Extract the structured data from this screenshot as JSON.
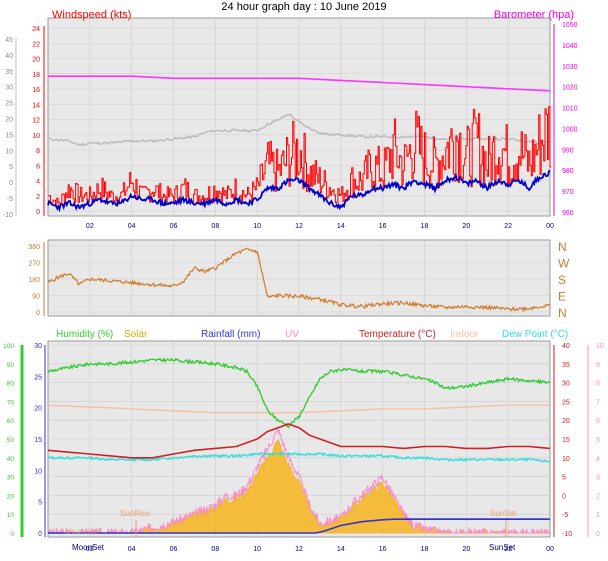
{
  "page_title": "24 hour graph day : 10 June 2019",
  "colors": {
    "windspeed": "#ff0000",
    "wind_avg": "#0000cc",
    "barometer": "#ff33ff",
    "gust_band": "#b8b8b8",
    "direction": "#d07a28",
    "humidity": "#33cc33",
    "solar": "#f7b82a",
    "rainfall": "#3333cc",
    "uv": "#ff88cc",
    "temperature": "#cc2222",
    "indoor": "#f5c0a0",
    "dewpoint": "#33dddd",
    "plot_bg": "#e8e8e8",
    "label_magenta": "#ee00ee"
  },
  "chart_data": [
    {
      "id": "wind-baro",
      "type": "line",
      "title": "24 hour graph day : 10 June 2019",
      "left_axis_label": "Windspeed (kts)",
      "right_axis_label": "Barometer (hpa)",
      "x_ticks": [
        "02",
        "04",
        "06",
        "08",
        "10",
        "12",
        "14",
        "16",
        "18",
        "20",
        "22",
        "00"
      ],
      "left_outer_ticks": [
        "45",
        "40",
        "35",
        "30",
        "25",
        "20",
        "15",
        "10",
        "5",
        "0",
        "-5",
        "-10"
      ],
      "left_inner_ticks": [
        "24",
        "22",
        "20",
        "18",
        "16",
        "14",
        "12",
        "10",
        "8",
        "6",
        "4",
        "2",
        "0"
      ],
      "right_ticks": [
        "1050",
        "1040",
        "1030",
        "1020",
        "1010",
        "1000",
        "990",
        "980",
        "970",
        "960"
      ],
      "ylim_kts": [
        0,
        25
      ],
      "ylim_hpa": [
        958,
        1050
      ],
      "grid": true,
      "series": [
        {
          "name": "Windspeed (kts)",
          "axis": "kts",
          "x": [
            0,
            0.5,
            1,
            1.5,
            2,
            2.5,
            3,
            3.5,
            4,
            4.5,
            5,
            5.5,
            6,
            6.5,
            7,
            7.5,
            8,
            8.5,
            9,
            9.5,
            10,
            10.5,
            11,
            11.5,
            12,
            12.5,
            13,
            13.5,
            14,
            14.5,
            15,
            15.5,
            16,
            16.5,
            17,
            17.5,
            18,
            18.5,
            19,
            19.5,
            20,
            20.5,
            21,
            21.5,
            22,
            22.5,
            23,
            23.5,
            24
          ],
          "values": [
            2,
            1,
            3,
            2,
            2,
            3,
            2,
            2,
            4,
            2,
            3,
            2,
            2,
            3,
            2,
            2,
            3,
            2,
            3,
            2,
            3,
            6,
            5,
            7,
            8,
            5,
            4,
            3,
            2,
            4,
            4,
            6,
            5,
            8,
            6,
            9,
            7,
            6,
            8,
            10,
            7,
            9,
            6,
            9,
            7,
            8,
            6,
            9,
            11
          ]
        },
        {
          "name": "Wind average",
          "axis": "kts",
          "x": [
            0,
            0.5,
            1,
            1.5,
            2,
            2.5,
            3,
            3.5,
            4,
            4.5,
            5,
            5.5,
            6,
            6.5,
            7,
            7.5,
            8,
            8.5,
            9,
            9.5,
            10,
            10.5,
            11,
            11.5,
            12,
            12.5,
            13,
            13.5,
            14,
            14.5,
            15,
            15.5,
            16,
            16.5,
            17,
            17.5,
            18,
            18.5,
            19,
            19.5,
            20,
            20.5,
            21,
            21.5,
            22,
            22.5,
            23,
            23.5,
            24
          ],
          "values": [
            1,
            0.5,
            1,
            0.5,
            1,
            1.5,
            1,
            1,
            2,
            1.5,
            1.5,
            1,
            1,
            1.5,
            1,
            1,
            1.5,
            1,
            1.5,
            1,
            1.5,
            3,
            3,
            4,
            4,
            3,
            2,
            1,
            0.5,
            2,
            2,
            3,
            3,
            3.5,
            3,
            4,
            3.5,
            3,
            4,
            4.5,
            3.5,
            4,
            3,
            4,
            3.5,
            4,
            3,
            4.5,
            5
          ]
        },
        {
          "name": "Gust band",
          "axis": "hpa",
          "x": [
            0,
            1,
            1.5,
            2,
            3,
            4,
            5,
            6,
            7,
            7.5,
            8,
            9,
            10,
            10.5,
            11,
            11.5,
            12,
            12.5,
            13,
            13.5,
            14,
            15,
            16,
            17,
            18,
            19,
            20,
            21,
            22,
            23,
            23.5,
            24
          ],
          "values": [
            995,
            994,
            992,
            993,
            993,
            994,
            994,
            995,
            996,
            998,
            999,
            999,
            999,
            1002,
            1004,
            1007,
            1003,
            1000,
            998,
            997,
            997,
            996,
            996,
            996,
            996,
            995,
            995,
            995,
            995,
            994,
            993,
            994
          ]
        },
        {
          "name": "Barometer (hpa)",
          "axis": "hpa",
          "x": [
            0,
            2,
            4,
            6,
            8,
            10,
            12,
            14,
            16,
            18,
            20,
            22,
            24
          ],
          "values": [
            1025,
            1025,
            1025,
            1024,
            1024,
            1024,
            1024,
            1023,
            1022,
            1021,
            1020,
            1019,
            1018
          ]
        }
      ]
    },
    {
      "id": "wind-direction",
      "type": "line",
      "left_ticks": [
        "360",
        "270",
        "180",
        "90",
        "0"
      ],
      "right_ticks": [
        "N",
        "W",
        "S",
        "E",
        "N"
      ],
      "ylim": [
        0,
        360
      ],
      "grid": true,
      "series": [
        {
          "name": "Wind direction",
          "x": [
            0,
            0.5,
            1,
            1.5,
            2,
            3,
            4,
            5,
            6,
            6.5,
            7,
            7.5,
            8,
            8.5,
            9,
            9.5,
            10,
            10.5,
            11,
            12,
            13,
            14,
            15,
            16,
            17,
            18,
            19,
            20,
            21,
            22,
            23,
            23.5,
            24
          ],
          "values": [
            160,
            190,
            210,
            150,
            180,
            170,
            160,
            150,
            140,
            170,
            240,
            220,
            240,
            280,
            320,
            340,
            330,
            80,
            90,
            85,
            70,
            40,
            30,
            45,
            50,
            35,
            25,
            30,
            25,
            15,
            20,
            30,
            35
          ]
        }
      ]
    },
    {
      "id": "multi",
      "type": "line",
      "labels": [
        "Humidity (%)",
        "Solar",
        "Rainfall (mm)",
        "UV",
        "Temperature (°C)",
        "Indoor",
        "Dew Point (°C)"
      ],
      "x_ticks": [
        "02",
        "04",
        "06",
        "08",
        "10",
        "12",
        "14",
        "16",
        "18",
        "20",
        "22",
        "00"
      ],
      "humidity_ticks": [
        "100",
        "90",
        "80",
        "70",
        "60",
        "50",
        "40",
        "30",
        "20",
        "10",
        "0"
      ],
      "rain_ticks": [
        "30",
        "25",
        "20",
        "15",
        "10",
        "5",
        "0"
      ],
      "temp_ticks": [
        "40",
        "35",
        "30",
        "25",
        "20",
        "15",
        "10",
        "5",
        "0",
        "-5",
        "-10"
      ],
      "uv_ticks": [
        "10",
        "9",
        "8",
        "7",
        "6",
        "5",
        "4",
        "3",
        "2",
        "1",
        "0"
      ],
      "annotations": [
        "SunRise",
        "SunSet",
        "MoonSet",
        "MoonSet",
        "SunSet"
      ],
      "ylim_humidity": [
        0,
        100
      ],
      "ylim_temp": [
        -10,
        40
      ],
      "ylim_uv": [
        0,
        10
      ],
      "ylim_rain": [
        0,
        30
      ],
      "grid": true,
      "series": [
        {
          "name": "Humidity (%)",
          "axis": "humidity",
          "x": [
            0,
            1,
            2,
            3,
            4,
            5,
            6,
            7,
            8,
            9,
            9.5,
            10,
            10.5,
            11,
            11.5,
            12,
            12.5,
            13,
            13.5,
            14,
            15,
            16,
            17,
            18,
            18.5,
            19,
            20,
            21,
            22,
            23,
            24
          ],
          "values": [
            86,
            88,
            90,
            90,
            91,
            92,
            92,
            91,
            90,
            88,
            86,
            78,
            65,
            60,
            57,
            62,
            72,
            82,
            86,
            87,
            86,
            86,
            84,
            82,
            80,
            77,
            78,
            80,
            82,
            81,
            80
          ]
        },
        {
          "name": "Indoor",
          "axis": "temp",
          "x": [
            0,
            2,
            4,
            6,
            8,
            10,
            12,
            14,
            16,
            18,
            20,
            22,
            24
          ],
          "values": [
            24,
            23.5,
            23,
            22.5,
            22,
            22,
            22,
            22.5,
            23,
            23,
            23.5,
            24,
            24
          ]
        },
        {
          "name": "Temperature (°C)",
          "axis": "temp",
          "x": [
            0,
            1,
            2,
            3,
            4,
            5,
            6,
            7,
            8,
            9,
            10,
            10.5,
            11,
            11.5,
            12,
            12.5,
            13,
            14,
            15,
            16,
            17,
            18,
            19,
            20,
            21,
            22,
            23,
            24
          ],
          "values": [
            12,
            11.5,
            11,
            10.5,
            10,
            10,
            11,
            12,
            12.5,
            13,
            15,
            17,
            18,
            19,
            18,
            16,
            15,
            13,
            13,
            13,
            12.5,
            13,
            13,
            12.5,
            12.5,
            13,
            13,
            12.5
          ]
        },
        {
          "name": "Dew Point (°C)",
          "axis": "temp",
          "x": [
            0,
            1,
            2,
            3,
            4,
            5,
            6,
            7,
            8,
            9,
            10,
            11,
            12,
            13,
            14,
            15,
            16,
            17,
            18,
            19,
            20,
            21,
            22,
            23,
            24
          ],
          "values": [
            10,
            10,
            10,
            9.5,
            9.5,
            9.5,
            10,
            10.5,
            10.5,
            10.5,
            11,
            11,
            11,
            11,
            10.5,
            10.5,
            10.5,
            10,
            10,
            9.5,
            9.5,
            9.5,
            9.5,
            9.5,
            9
          ]
        },
        {
          "name": "UV",
          "axis": "uv",
          "x": [
            0,
            4,
            5,
            6,
            6.5,
            7,
            8,
            8.5,
            9,
            9.5,
            10,
            10.5,
            11,
            11.5,
            12,
            12.5,
            13,
            14,
            14.5,
            15,
            15.5,
            16,
            16.5,
            17,
            17.5,
            18,
            19,
            20,
            24
          ],
          "values": [
            0,
            0,
            0.3,
            0.6,
            0.8,
            1,
            1.5,
            2,
            2,
            2.5,
            3.5,
            4.5,
            5.5,
            4,
            3,
            1.5,
            0.5,
            0.8,
            1.5,
            2,
            2.5,
            3,
            2,
            1,
            0.4,
            0.2,
            0,
            0,
            0
          ]
        },
        {
          "name": "Rainfall (mm)",
          "axis": "rain",
          "x": [
            0,
            12.8,
            13.2,
            14,
            15,
            16,
            16.5,
            17,
            24
          ],
          "values": [
            0,
            0,
            0.3,
            1.2,
            1.8,
            2.1,
            2.2,
            2.2,
            2.2
          ]
        }
      ]
    }
  ]
}
